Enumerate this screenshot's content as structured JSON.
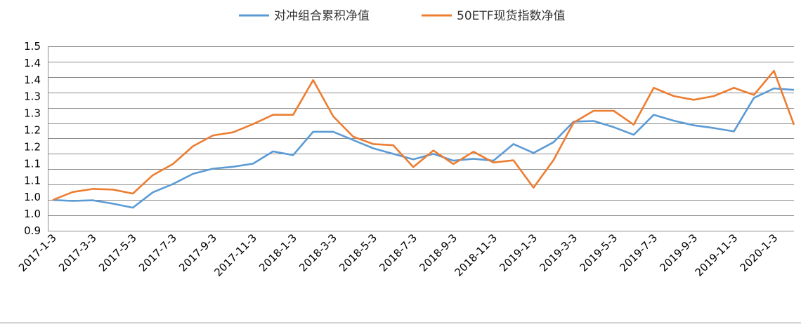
{
  "chart_data": {
    "type": "line",
    "title": "",
    "xlabel": "",
    "ylabel": "",
    "ylim": [
      0.9,
      1.5
    ],
    "y_ticks": [
      "1.5",
      "1.4",
      "1.4",
      "1.3",
      "1.3",
      "1.2",
      "1.2",
      "1.1",
      "1.1",
      "1.0",
      "1.0",
      "0.9"
    ],
    "y_tick_values": [
      1.5,
      1.45,
      1.4,
      1.35,
      1.3,
      1.25,
      1.2,
      1.15,
      1.1,
      1.05,
      1.0,
      0.95,
      0.9
    ],
    "x_tick_labels": [
      "2017-1-3",
      "2017-3-3",
      "2017-5-3",
      "2017-7-3",
      "2017-9-3",
      "2017-11-3",
      "2018-1-3",
      "2018-3-3",
      "2018-5-3",
      "2018-7-3",
      "2018-9-3",
      "2018-11-3",
      "2019-1-3",
      "2019-3-3",
      "2019-5-3",
      "2019-7-3",
      "2019-9-3",
      "2019-11-3",
      "2020-1-3"
    ],
    "legend_position": "top-center",
    "series": [
      {
        "name": "对冲组合累积净值",
        "color": "#5b9bd5",
        "values": [
          1.0,
          0.997,
          0.999,
          0.988,
          0.975,
          1.025,
          1.052,
          1.085,
          1.102,
          1.108,
          1.118,
          1.158,
          1.146,
          1.222,
          1.222,
          1.195,
          1.168,
          1.15,
          1.132,
          1.15,
          1.128,
          1.134,
          1.128,
          1.182,
          1.153,
          1.188,
          1.255,
          1.257,
          1.237,
          1.212,
          1.277,
          1.258,
          1.243,
          1.234,
          1.223,
          1.332,
          1.363,
          1.358
        ]
      },
      {
        "name": "50ETF现货指数净值",
        "color": "#ed7d31",
        "values": [
          1.0,
          1.026,
          1.036,
          1.034,
          1.021,
          1.081,
          1.117,
          1.175,
          1.21,
          1.22,
          1.247,
          1.277,
          1.277,
          1.39,
          1.272,
          1.206,
          1.182,
          1.178,
          1.107,
          1.161,
          1.117,
          1.157,
          1.122,
          1.129,
          1.04,
          1.13,
          1.252,
          1.29,
          1.29,
          1.245,
          1.365,
          1.338,
          1.326,
          1.338,
          1.365,
          1.342,
          1.42,
          1.245
        ]
      }
    ]
  }
}
